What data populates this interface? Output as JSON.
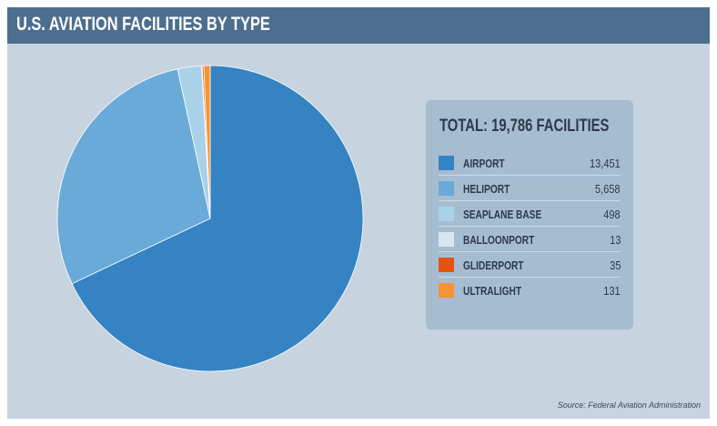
{
  "header": {
    "title": "U.S. AVIATION FACILITIES BY TYPE"
  },
  "legend": {
    "total": "TOTAL: 19,786 FACILITIES"
  },
  "source": "Source: Federal Aviation Administration",
  "chart_data": {
    "type": "pie",
    "title": "U.S. AVIATION FACILITIES BY TYPE",
    "categories": [
      "AIRPORT",
      "HELIPORT",
      "SEAPLANE BASE",
      "BALLOONPORT",
      "GLIDERPORT",
      "ULTRALIGHT"
    ],
    "values": [
      13451,
      5658,
      498,
      13,
      35,
      131
    ],
    "value_labels": [
      "13,451",
      "5,658",
      "498",
      "13",
      "35",
      "131"
    ],
    "colors": [
      "#3583c2",
      "#6aaad8",
      "#a9d1e8",
      "#d9e5ef",
      "#e5540f",
      "#f69333"
    ],
    "legend_placement": "right"
  }
}
